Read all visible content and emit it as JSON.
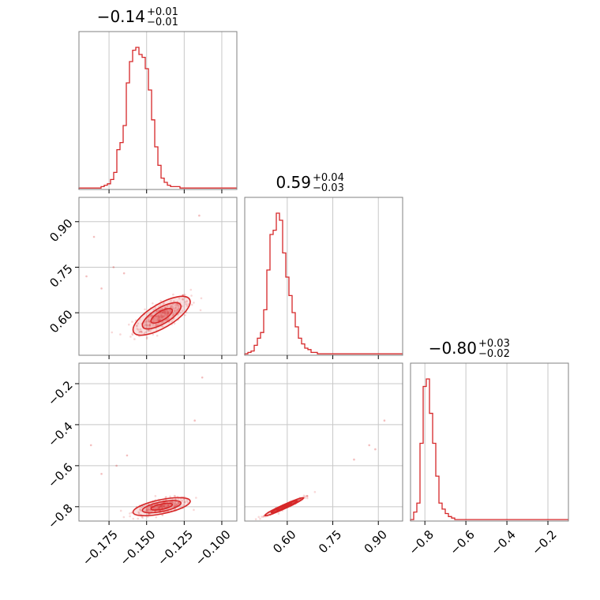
{
  "chart_data": {
    "type": "corner",
    "color": "#d62728",
    "params": [
      {
        "title": {
          "median": "−0.14",
          "plus": "+0.01",
          "minus": "−0.01"
        },
        "range": [
          -0.195,
          -0.09
        ],
        "ticks": [
          {
            "v": -0.175,
            "label": "−0.175"
          },
          {
            "v": -0.15,
            "label": "−0.150"
          },
          {
            "v": -0.125,
            "label": "−0.125"
          },
          {
            "v": -0.1,
            "label": "−0.100"
          }
        ],
        "hist": {
          "start": -0.195,
          "width": 0.0021,
          "counts": [
            0.01,
            0.01,
            0.01,
            0.01,
            0.01,
            0.01,
            0.01,
            0.02,
            0.03,
            0.04,
            0.07,
            0.12,
            0.28,
            0.33,
            0.45,
            0.75,
            0.9,
            0.98,
            1.0,
            0.95,
            0.93,
            0.85,
            0.7,
            0.49,
            0.3,
            0.17,
            0.08,
            0.05,
            0.03,
            0.02,
            0.02,
            0.02,
            0.01,
            0.01,
            0.01,
            0.01,
            0.01,
            0.01,
            0.01,
            0.01,
            0.01,
            0.01,
            0.01,
            0.01,
            0.01,
            0.01,
            0.01,
            0.01,
            0.01,
            0.01
          ]
        }
      },
      {
        "title": {
          "median": "0.59",
          "plus": "+0.04",
          "minus": "−0.03"
        },
        "range": [
          0.46,
          0.98
        ],
        "ticks": [
          {
            "v": 0.6,
            "label": "0.60"
          },
          {
            "v": 0.75,
            "label": "0.75"
          },
          {
            "v": 0.9,
            "label": "0.90"
          }
        ],
        "hist": {
          "start": 0.46,
          "width": 0.0104,
          "counts": [
            0.01,
            0.02,
            0.03,
            0.07,
            0.12,
            0.16,
            0.32,
            0.6,
            0.85,
            0.88,
            1.0,
            0.95,
            0.72,
            0.55,
            0.42,
            0.3,
            0.2,
            0.12,
            0.08,
            0.05,
            0.04,
            0.02,
            0.02,
            0.01,
            0.01,
            0.01,
            0.01,
            0.01,
            0.01,
            0.01,
            0.01,
            0.01,
            0.01,
            0.01,
            0.01,
            0.01,
            0.01,
            0.01,
            0.01,
            0.01,
            0.01,
            0.01,
            0.01,
            0.01,
            0.01,
            0.01,
            0.01,
            0.01,
            0.01,
            0.01
          ]
        }
      },
      {
        "title": {
          "median": "−0.80",
          "plus": "+0.03",
          "minus": "−0.02"
        },
        "range": [
          -0.87,
          -0.1
        ],
        "ticks": [
          {
            "v": -0.8,
            "label": "−0.8"
          },
          {
            "v": -0.6,
            "label": "−0.6"
          },
          {
            "v": -0.4,
            "label": "−0.4"
          },
          {
            "v": -0.2,
            "label": "−0.2"
          }
        ],
        "hist": {
          "start": -0.87,
          "width": 0.0154,
          "counts": [
            0.01,
            0.06,
            0.12,
            0.52,
            0.9,
            0.95,
            0.72,
            0.52,
            0.3,
            0.12,
            0.08,
            0.05,
            0.03,
            0.02,
            0.01,
            0.01,
            0.01,
            0.01,
            0.01,
            0.01,
            0.01,
            0.01,
            0.01,
            0.01,
            0.01,
            0.01,
            0.01,
            0.01,
            0.01,
            0.01,
            0.01,
            0.01,
            0.01,
            0.01,
            0.01,
            0.01,
            0.01,
            0.01,
            0.01,
            0.01,
            0.01,
            0.01,
            0.01,
            0.01,
            0.01,
            0.01,
            0.01,
            0.01,
            0.01,
            0.01
          ]
        }
      }
    ],
    "pairs": [
      {
        "row": 1,
        "col": 0,
        "center": [
          -0.14,
          0.59
        ],
        "sd": [
          0.0095,
          0.032
        ],
        "corr": 0.72,
        "outliers": [
          [
            -0.185,
            0.85
          ],
          [
            -0.172,
            0.75
          ],
          [
            -0.165,
            0.73
          ],
          [
            -0.115,
            0.92
          ],
          [
            -0.19,
            0.72
          ],
          [
            -0.18,
            0.68
          ]
        ]
      },
      {
        "row": 2,
        "col": 0,
        "center": [
          -0.14,
          -0.8
        ],
        "sd": [
          0.0095,
          0.022
        ],
        "corr": 0.6,
        "outliers": [
          [
            -0.187,
            -0.5
          ],
          [
            -0.163,
            -0.55
          ],
          [
            -0.118,
            -0.38
          ],
          [
            -0.113,
            -0.17
          ],
          [
            -0.17,
            -0.6
          ],
          [
            -0.18,
            -0.64
          ]
        ]
      },
      {
        "row": 2,
        "col": 1,
        "center": [
          0.59,
          -0.8
        ],
        "sd": [
          0.032,
          0.022
        ],
        "corr": 0.97,
        "outliers": [
          [
            0.92,
            -0.38
          ],
          [
            0.87,
            -0.5
          ],
          [
            0.82,
            -0.57
          ],
          [
            0.89,
            -0.52
          ]
        ]
      }
    ]
  }
}
